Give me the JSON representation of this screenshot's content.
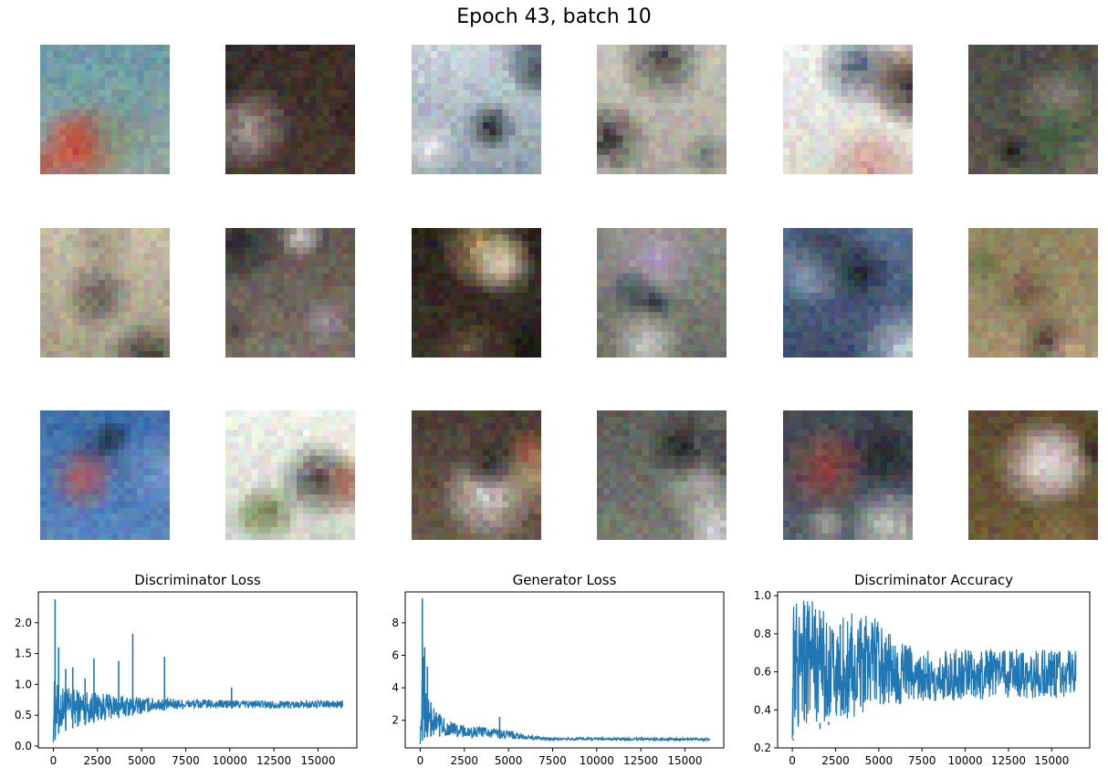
{
  "figure": {
    "title": "Epoch 43, batch 10"
  },
  "image_grid": {
    "rows": 3,
    "cols": 6,
    "tiles": [
      {
        "bg": [
          "#6b9aa6",
          "#93a69c"
        ],
        "blobs": [
          "#b4513e",
          "#d06a4e",
          "#c63a22",
          "#7f8f74"
        ]
      },
      {
        "bg": [
          "#3b2e28",
          "#4a3a31"
        ],
        "blobs": [
          "#6a5648",
          "#1d1613",
          "#b4a9a2",
          "#2b211c"
        ]
      },
      {
        "bg": [
          "#c9d4dc",
          "#8d9aa5"
        ],
        "blobs": [
          "#1c2430",
          "#f1f2f0",
          "#5b6a78",
          "#0e1218"
        ]
      },
      {
        "bg": [
          "#c7c3b8",
          "#a9a69b"
        ],
        "blobs": [
          "#2f3533",
          "#e3e0d6",
          "#69736f",
          "#1a1c1b"
        ]
      },
      {
        "bg": [
          "#eef1ee",
          "#d9d7cf"
        ],
        "blobs": [
          "#8a5a4a",
          "#2a2524",
          "#c98d7d",
          "#3e4e63"
        ]
      },
      {
        "bg": [
          "#4d4e45",
          "#5c5a4e"
        ],
        "blobs": [
          "#8c8372",
          "#1b1c19",
          "#a6a08f",
          "#3f5a3a"
        ]
      },
      {
        "bg": [
          "#c7bda6",
          "#a39c86"
        ],
        "blobs": [
          "#1e1f1d",
          "#e4dccb",
          "#4c4a42",
          "#8b8676"
        ]
      },
      {
        "bg": [
          "#5f574e",
          "#7b7368"
        ],
        "blobs": [
          "#23262b",
          "#d9d6d8",
          "#a192a6",
          "#44403a"
        ]
      },
      {
        "bg": [
          "#2b241e",
          "#3e3228"
        ],
        "blobs": [
          "#d2b57a",
          "#0f0d0b",
          "#eae1c8",
          "#6e5a44"
        ]
      },
      {
        "bg": [
          "#8b8d83",
          "#6c6e66"
        ],
        "blobs": [
          "#1f2a2e",
          "#d6d8d2",
          "#b6a4c6",
          "#3b4a4e"
        ]
      },
      {
        "bg": [
          "#566e91",
          "#3e4f69"
        ],
        "blobs": [
          "#1a1f26",
          "#9fb3c5",
          "#e2e7ea",
          "#2e3a48"
        ]
      },
      {
        "bg": [
          "#8f8460",
          "#a2946f"
        ],
        "blobs": [
          "#5b6f3c",
          "#3b2a26",
          "#c7b28b",
          "#6d5140"
        ]
      },
      {
        "bg": [
          "#3f6ea8",
          "#5a87bd"
        ],
        "blobs": [
          "#2b3f5e",
          "#7ea2cc",
          "#c8554b",
          "#1e2e48"
        ]
      },
      {
        "bg": [
          "#eef0ea",
          "#cfd6c8"
        ],
        "blobs": [
          "#5d6e3a",
          "#2c2a28",
          "#8c9a6a",
          "#a05a45"
        ]
      },
      {
        "bg": [
          "#4a3f36",
          "#6b5a4a"
        ],
        "blobs": [
          "#e9e6e2",
          "#a3432f",
          "#c1a07a",
          "#1e1a16"
        ]
      },
      {
        "bg": [
          "#5c5e59",
          "#787a73"
        ],
        "blobs": [
          "#bfc3bd",
          "#161716",
          "#e8e9e4",
          "#2f3231"
        ]
      },
      {
        "bg": [
          "#414a52",
          "#59626a"
        ],
        "blobs": [
          "#b9b8ae",
          "#1b1e21",
          "#9a4035",
          "#e0ddd2"
        ]
      },
      {
        "bg": [
          "#5c4a2f",
          "#6e5a3a"
        ],
        "blobs": [
          "#d8c3c6",
          "#2e2418",
          "#8a7a48",
          "#f0e4e6"
        ]
      }
    ]
  },
  "charts": {
    "line_color": "#1f77b4",
    "disc_loss": {
      "title": "Discriminator Loss"
    },
    "gen_loss": {
      "title": "Generator Loss"
    },
    "disc_acc": {
      "title": "Discriminator Accuracy"
    }
  },
  "chart_data": [
    {
      "type": "line",
      "title": "Discriminator Loss",
      "xlim": [
        -850,
        17200
      ],
      "ylim": [
        -0.03,
        2.5
      ],
      "xticks": [
        0,
        2500,
        5000,
        7500,
        10000,
        12500,
        15000
      ],
      "yticks": [
        0.0,
        0.5,
        1.0,
        1.5,
        2.0
      ],
      "ytick_labels": [
        "0.0",
        "0.5",
        "1.0",
        "1.5",
        "2.0"
      ],
      "n_steps": 16400,
      "envelope_x": [
        0,
        300,
        1000,
        2000,
        3000,
        4000,
        5000,
        6000,
        7500,
        10000,
        12500,
        16400
      ],
      "envelope_low": [
        0.05,
        0.2,
        0.28,
        0.36,
        0.42,
        0.47,
        0.52,
        0.57,
        0.6,
        0.61,
        0.61,
        0.61
      ],
      "envelope_high": [
        1.1,
        1.0,
        0.95,
        0.9,
        0.85,
        0.82,
        0.8,
        0.78,
        0.76,
        0.75,
        0.74,
        0.74
      ],
      "spikes": [
        {
          "x": 100,
          "y": 2.38
        },
        {
          "x": 300,
          "y": 1.6
        },
        {
          "x": 700,
          "y": 1.25
        },
        {
          "x": 1100,
          "y": 1.28
        },
        {
          "x": 1800,
          "y": 1.1
        },
        {
          "x": 2300,
          "y": 1.42
        },
        {
          "x": 3700,
          "y": 1.38
        },
        {
          "x": 4500,
          "y": 1.82
        },
        {
          "x": 6300,
          "y": 1.45
        },
        {
          "x": 10100,
          "y": 0.95
        }
      ]
    },
    {
      "type": "line",
      "title": "Generator Loss",
      "xlim": [
        -850,
        17200
      ],
      "ylim": [
        0.3,
        9.9
      ],
      "xticks": [
        0,
        2500,
        5000,
        7500,
        10000,
        12500,
        15000
      ],
      "yticks": [
        2,
        4,
        6,
        8
      ],
      "ytick_labels": [
        "2",
        "4",
        "6",
        "8"
      ],
      "n_steps": 16400,
      "envelope_x": [
        0,
        200,
        500,
        1000,
        2000,
        3000,
        4000,
        5000,
        6000,
        7500,
        16400
      ],
      "envelope_low": [
        0.5,
        0.9,
        1.0,
        1.0,
        0.95,
        0.92,
        0.9,
        0.85,
        0.8,
        0.78,
        0.75
      ],
      "envelope_high": [
        3.5,
        6.5,
        3.2,
        2.4,
        1.8,
        1.6,
        1.55,
        1.4,
        1.1,
        0.95,
        0.9
      ],
      "spikes": [
        {
          "x": 120,
          "y": 9.5
        },
        {
          "x": 250,
          "y": 6.5
        },
        {
          "x": 400,
          "y": 5.3
        },
        {
          "x": 600,
          "y": 3.1
        },
        {
          "x": 1100,
          "y": 2.4
        },
        {
          "x": 4500,
          "y": 2.2
        }
      ]
    },
    {
      "type": "line",
      "title": "Discriminator Accuracy",
      "xlim": [
        -850,
        17200
      ],
      "ylim": [
        0.2,
        1.02
      ],
      "xticks": [
        0,
        2500,
        5000,
        7500,
        10000,
        12500,
        15000
      ],
      "yticks": [
        0.2,
        0.4,
        0.6,
        0.8,
        1.0
      ],
      "ytick_labels": [
        "0.2",
        "0.4",
        "0.6",
        "0.8",
        "1.0"
      ],
      "n_steps": 16400,
      "envelope_x": [
        0,
        500,
        1500,
        3000,
        5000,
        6000,
        7500,
        10000,
        12500,
        16400
      ],
      "envelope_low": [
        0.24,
        0.32,
        0.33,
        0.35,
        0.4,
        0.43,
        0.44,
        0.45,
        0.46,
        0.46
      ],
      "envelope_high": [
        1.0,
        1.0,
        0.97,
        0.92,
        0.88,
        0.76,
        0.72,
        0.72,
        0.72,
        0.72
      ],
      "spikes": [
        {
          "x": 50,
          "y": 0.24
        },
        {
          "x": 1600,
          "y": 0.3
        },
        {
          "x": 2100,
          "y": 0.32
        }
      ]
    }
  ]
}
